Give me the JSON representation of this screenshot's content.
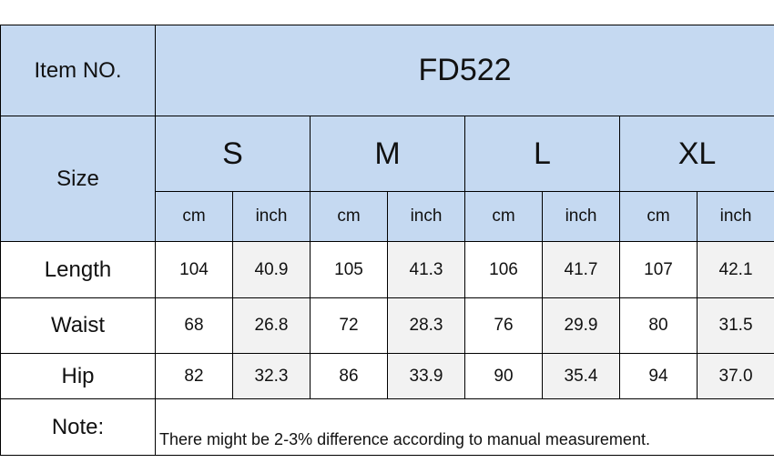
{
  "header": {
    "label": "Item NO.",
    "item_no": "FD522"
  },
  "size_label": "Size",
  "sizes": [
    "S",
    "M",
    "L",
    "XL"
  ],
  "units": [
    "cm",
    "inch",
    "cm",
    "inch",
    "cm",
    "inch",
    "cm",
    "inch"
  ],
  "rows": [
    {
      "label": "Length",
      "values": [
        "104",
        "40.9",
        "105",
        "41.3",
        "106",
        "41.7",
        "107",
        "42.1"
      ]
    },
    {
      "label": "Waist",
      "values": [
        "68",
        "26.8",
        "72",
        "28.3",
        "76",
        "29.9",
        "80",
        "31.5"
      ]
    },
    {
      "label": "Hip",
      "values": [
        "82",
        "32.3",
        "86",
        "33.9",
        "90",
        "35.4",
        "94",
        "37.0"
      ]
    }
  ],
  "note": {
    "label": "Note:",
    "text": "There might be 2-3% difference according to manual measurement."
  }
}
